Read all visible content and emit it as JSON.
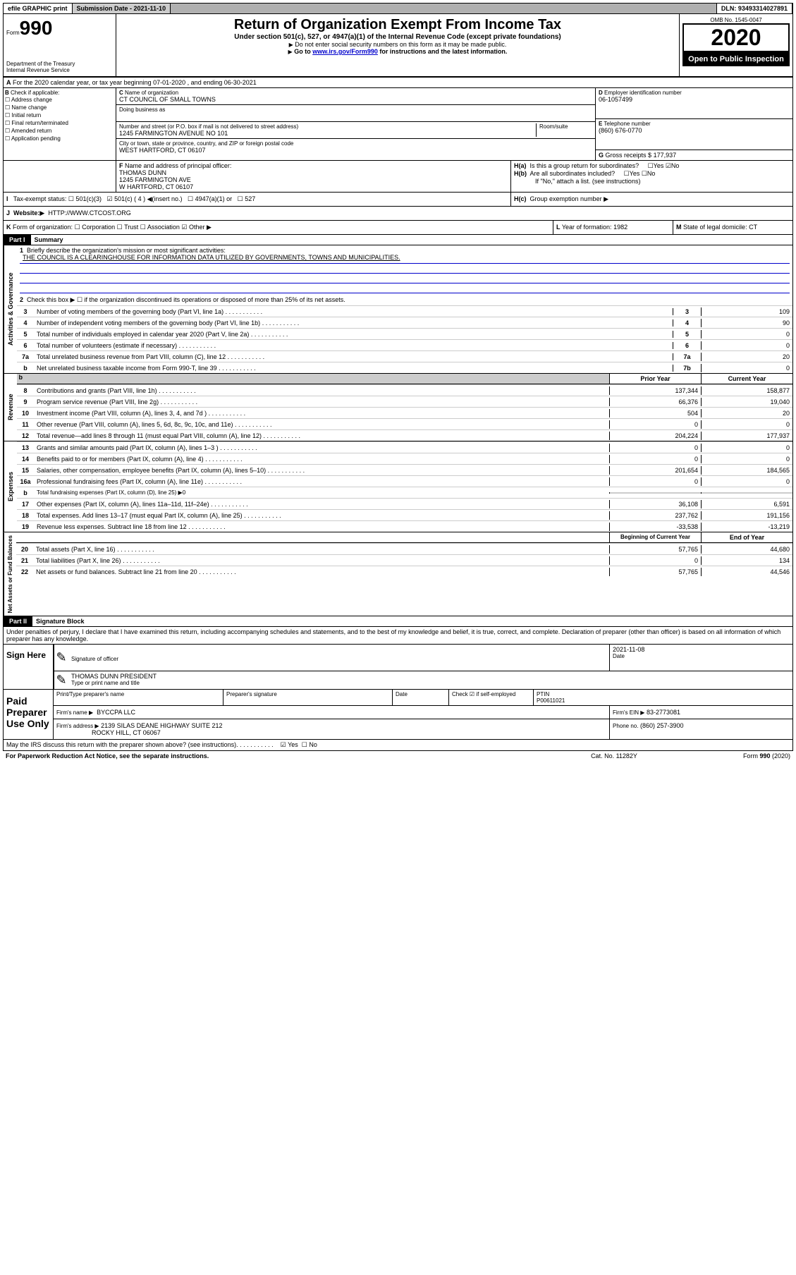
{
  "topbar": {
    "efile": "efile GRAPHIC print",
    "submission_label": "Submission Date - 2021-11-10",
    "dln_label": "DLN: 93493314027891"
  },
  "header": {
    "form_label": "Form",
    "form_num": "990",
    "dept": "Department of the Treasury",
    "irs": "Internal Revenue Service",
    "title": "Return of Organization Exempt From Income Tax",
    "subtitle": "Under section 501(c), 527, or 4947(a)(1) of the Internal Revenue Code (except private foundations)",
    "note1": "Do not enter social security numbers on this form as it may be made public.",
    "note2_pre": "Go to ",
    "note2_link": "www.irs.gov/Form990",
    "note2_post": " for instructions and the latest information.",
    "omb": "OMB No. 1545-0047",
    "year": "2020",
    "inspection": "Open to Public Inspection"
  },
  "period": {
    "line": "For the 2020 calendar year, or tax year beginning 07-01-2020    , and ending 06-30-2021"
  },
  "boxB": {
    "label": "Check if applicable:",
    "items": [
      "Address change",
      "Name change",
      "Initial return",
      "Final return/terminated",
      "Amended return",
      "Application pending"
    ]
  },
  "boxC": {
    "label": "Name of organization",
    "value": "CT COUNCIL OF SMALL TOWNS",
    "dba_label": "Doing business as",
    "addr_label": "Number and street (or P.O. box if mail is not delivered to street address)",
    "addr": "1245 FARMINGTON AVENUE NO 101",
    "room_label": "Room/suite",
    "city_label": "City or town, state or province, country, and ZIP or foreign postal code",
    "city": "WEST HARTFORD, CT  06107"
  },
  "boxD": {
    "label": "Employer identification number",
    "value": "06-1057499"
  },
  "boxE": {
    "label": "Telephone number",
    "value": "(860) 676-0770"
  },
  "boxG": {
    "label": "Gross receipts $",
    "value": "177,937"
  },
  "boxF": {
    "label": "Name and address of principal officer:",
    "name": "THOMAS DUNN",
    "addr1": "1245 FARMINGTON AVE",
    "addr2": "W HARTFORD, CT  06107"
  },
  "boxH": {
    "a": "Is this a group return for subordinates?",
    "b": "Are all subordinates included?",
    "note": "If \"No,\" attach a list. (see instructions)",
    "c": "Group exemption number"
  },
  "taxExempt": {
    "label": "Tax-exempt status:",
    "opts": [
      "501(c)(3)",
      "501(c) ( 4 )",
      "(insert no.)",
      "4947(a)(1) or",
      "527"
    ]
  },
  "website": {
    "label": "Website:",
    "value": "HTTP://WWW.CTCOST.ORG"
  },
  "boxK": {
    "label": "Form of organization:",
    "opts": [
      "Corporation",
      "Trust",
      "Association",
      "Other"
    ]
  },
  "boxL": {
    "label": "Year of formation:",
    "value": "1982"
  },
  "boxM": {
    "label": "State of legal domicile:",
    "value": "CT"
  },
  "part1": {
    "title": "Part I",
    "subtitle": "Summary",
    "l1_label": "Briefly describe the organization's mission or most significant activities:",
    "l1_text": "THE COUNCIL IS A CLEARINGHOUSE FOR INFORMATION DATA UTILIZED BY GOVERNMENTS, TOWNS AND MUNICIPALITIES.",
    "l2": "Check this box ▶ ☐  if the organization discontinued its operations or disposed of more than 25% of its net assets.",
    "governance_label": "Activities & Governance",
    "revenue_label": "Revenue",
    "expenses_label": "Expenses",
    "netassets_label": "Net Assets or Fund Balances",
    "lines_single": [
      {
        "n": "3",
        "t": "Number of voting members of the governing body (Part VI, line 1a)",
        "box": "3",
        "v": "109"
      },
      {
        "n": "4",
        "t": "Number of independent voting members of the governing body (Part VI, line 1b)",
        "box": "4",
        "v": "90"
      },
      {
        "n": "5",
        "t": "Total number of individuals employed in calendar year 2020 (Part V, line 2a)",
        "box": "5",
        "v": "0"
      },
      {
        "n": "6",
        "t": "Total number of volunteers (estimate if necessary)",
        "box": "6",
        "v": "0"
      },
      {
        "n": "7a",
        "t": "Total unrelated business revenue from Part VIII, column (C), line 12",
        "box": "7a",
        "v": "20"
      },
      {
        "n": "b",
        "t": "Net unrelated business taxable income from Form 990-T, line 39",
        "box": "7b",
        "v": "0"
      }
    ],
    "col_prior": "Prior Year",
    "col_current": "Current Year",
    "revenue_lines": [
      {
        "n": "8",
        "t": "Contributions and grants (Part VIII, line 1h)",
        "p": "137,344",
        "c": "158,877"
      },
      {
        "n": "9",
        "t": "Program service revenue (Part VIII, line 2g)",
        "p": "66,376",
        "c": "19,040"
      },
      {
        "n": "10",
        "t": "Investment income (Part VIII, column (A), lines 3, 4, and 7d )",
        "p": "504",
        "c": "20"
      },
      {
        "n": "11",
        "t": "Other revenue (Part VIII, column (A), lines 5, 6d, 8c, 9c, 10c, and 11e)",
        "p": "0",
        "c": "0"
      },
      {
        "n": "12",
        "t": "Total revenue—add lines 8 through 11 (must equal Part VIII, column (A), line 12)",
        "p": "204,224",
        "c": "177,937"
      }
    ],
    "expense_lines": [
      {
        "n": "13",
        "t": "Grants and similar amounts paid (Part IX, column (A), lines 1–3 )",
        "p": "0",
        "c": "0"
      },
      {
        "n": "14",
        "t": "Benefits paid to or for members (Part IX, column (A), line 4)",
        "p": "0",
        "c": "0"
      },
      {
        "n": "15",
        "t": "Salaries, other compensation, employee benefits (Part IX, column (A), lines 5–10)",
        "p": "201,654",
        "c": "184,565"
      },
      {
        "n": "16a",
        "t": "Professional fundraising fees (Part IX, column (A), line 11e)",
        "p": "0",
        "c": "0"
      }
    ],
    "l16b": "Total fundraising expenses (Part IX, column (D), line 25) ▶0",
    "expense_lines2": [
      {
        "n": "17",
        "t": "Other expenses (Part IX, column (A), lines 11a–11d, 11f–24e)",
        "p": "36,108",
        "c": "6,591"
      },
      {
        "n": "18",
        "t": "Total expenses. Add lines 13–17 (must equal Part IX, column (A), line 25)",
        "p": "237,762",
        "c": "191,156"
      },
      {
        "n": "19",
        "t": "Revenue less expenses. Subtract line 18 from line 12",
        "p": "-33,538",
        "c": "-13,219"
      }
    ],
    "col_begin": "Beginning of Current Year",
    "col_end": "End of Year",
    "net_lines": [
      {
        "n": "20",
        "t": "Total assets (Part X, line 16)",
        "p": "57,765",
        "c": "44,680"
      },
      {
        "n": "21",
        "t": "Total liabilities (Part X, line 26)",
        "p": "0",
        "c": "134"
      },
      {
        "n": "22",
        "t": "Net assets or fund balances. Subtract line 21 from line 20",
        "p": "57,765",
        "c": "44,546"
      }
    ]
  },
  "part2": {
    "title": "Part II",
    "subtitle": "Signature Block",
    "declaration": "Under penalties of perjury, I declare that I have examined this return, including accompanying schedules and statements, and to the best of my knowledge and belief, it is true, correct, and complete. Declaration of preparer (other than officer) is based on all information of which preparer has any knowledge."
  },
  "sign": {
    "here": "Sign Here",
    "sig_label": "Signature of officer",
    "date_label": "Date",
    "date": "2021-11-08",
    "name": "THOMAS DUNN  PRESIDENT",
    "name_label": "Type or print name and title"
  },
  "paid": {
    "title": "Paid Preparer Use Only",
    "cols": [
      "Print/Type preparer's name",
      "Preparer's signature",
      "Date"
    ],
    "check_label": "Check ☑ if self-employed",
    "ptin_label": "PTIN",
    "ptin": "P00611021",
    "firm_name_label": "Firm's name  ▶",
    "firm_name": "BYCCPA LLC",
    "firm_ein_label": "Firm's EIN ▶",
    "firm_ein": "83-2773081",
    "firm_addr_label": "Firm's address ▶",
    "firm_addr1": "2139 SILAS DEANE HIGHWAY SUITE 212",
    "firm_addr2": "ROCKY HILL, CT  06067",
    "phone_label": "Phone no.",
    "phone": "(860) 257-3900"
  },
  "footer": {
    "discuss": "May the IRS discuss this return with the preparer shown above? (see instructions)",
    "paperwork": "For Paperwork Reduction Act Notice, see the separate instructions.",
    "cat": "Cat. No. 11282Y",
    "form": "Form 990 (2020)"
  }
}
